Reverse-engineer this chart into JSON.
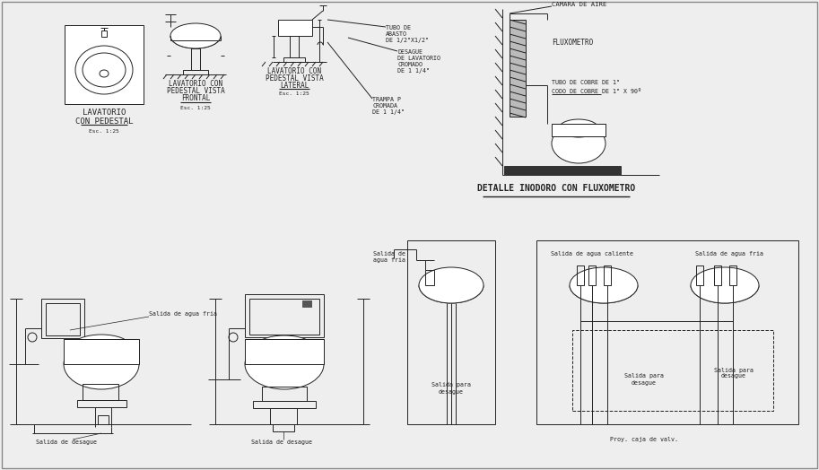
{
  "bg_color": "#eeeeee",
  "line_color": "#222222",
  "labels": {
    "lavatorio": "LAVATORIO",
    "con_pedestal": "CON PEDESTAL",
    "esc1": "Esc. 1:25",
    "lav_frontal_1": "LAVATORIO CON",
    "lav_frontal_2": "PEDESTAL VISTA",
    "lav_frontal_3": "FRONTAL",
    "lav_frontal_esc": "Esc. 1:25",
    "lav_lateral_1": "LAVATORIO CON",
    "lav_lateral_2": "PEDESTAL VISTA",
    "lav_lateral_3": "LATERAL",
    "lav_lateral_esc": "Esc. 1:25",
    "tubo_abasto": "TUBO DE\nABASTO\nDE 1/2\"X1/2\"",
    "desague_lav": "DESAGUE\nDE LAVATORIO\nCROMADO\nDE 1 1/4\"",
    "trampa": "TRAMPA P\nCROMADA\nDE 1 1/4\"",
    "camara": "CAMARA DE AIRE",
    "fluxometro": "FLUXOMETRO",
    "tubo_cobre": "TUBO DE COBRE DE 1\"",
    "codo_cobre": "CODO DE COBRE DE 1\" X 90º",
    "detalle": "DETALLE INODORO CON FLUXOMETRO",
    "sal_fria_1": "Salida de agua fria",
    "sal_fria_2": "Salida de\nagua fria",
    "sal_caliente": "Salida de agua caliente",
    "sal_fria_3": "Salida de agua fria",
    "sal_desague_1": "Salida de desague",
    "sal_desague_2": "Salida de desague",
    "sal_para_des1": "Salida para\ndesague",
    "sal_para_des2": "Salida para\ndesague",
    "proy_caja": "Proy. caja de valv."
  }
}
